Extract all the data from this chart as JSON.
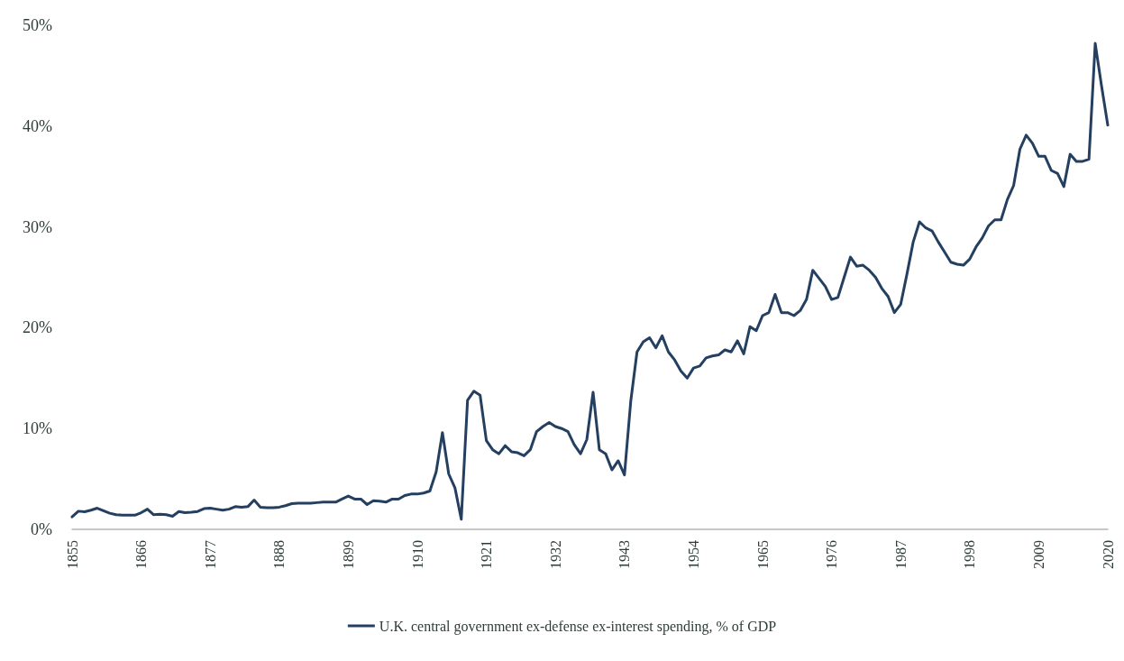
{
  "chart_data": {
    "type": "line",
    "x": [
      1855,
      1856,
      1857,
      1858,
      1859,
      1860,
      1861,
      1862,
      1863,
      1864,
      1865,
      1866,
      1867,
      1868,
      1869,
      1870,
      1871,
      1872,
      1873,
      1874,
      1875,
      1876,
      1877,
      1878,
      1879,
      1880,
      1881,
      1882,
      1883,
      1884,
      1885,
      1886,
      1887,
      1888,
      1889,
      1890,
      1891,
      1892,
      1893,
      1894,
      1895,
      1896,
      1897,
      1898,
      1899,
      1900,
      1901,
      1902,
      1903,
      1904,
      1905,
      1906,
      1907,
      1908,
      1909,
      1910,
      1911,
      1912,
      1913,
      1914,
      1915,
      1916,
      1917,
      1918,
      1919,
      1920,
      1921,
      1922,
      1923,
      1924,
      1925,
      1926,
      1927,
      1928,
      1929,
      1930,
      1931,
      1932,
      1933,
      1934,
      1935,
      1936,
      1937,
      1938,
      1939,
      1940,
      1941,
      1942,
      1943,
      1944,
      1945,
      1946,
      1947,
      1948,
      1949,
      1950,
      1951,
      1952,
      1953,
      1954,
      1955,
      1956,
      1957,
      1958,
      1959,
      1960,
      1961,
      1962,
      1963,
      1964,
      1965,
      1966,
      1967,
      1968,
      1969,
      1970,
      1971,
      1972,
      1973,
      1974,
      1975,
      1976,
      1977,
      1978,
      1979,
      1980,
      1981,
      1982,
      1983,
      1984,
      1985,
      1986,
      1987,
      1988,
      1989,
      1990,
      1991,
      1992,
      1993,
      1994,
      1995,
      1996,
      1997,
      1998,
      1999,
      2000,
      2001,
      2002,
      2003,
      2004,
      2005,
      2006,
      2007,
      2008,
      2009,
      2010,
      2011,
      2012,
      2013,
      2014,
      2015,
      2016,
      2017,
      2018,
      2019,
      2020
    ],
    "series": [
      {
        "name": "U.K. central government ex-defense ex-interest spending, % of GDP",
        "color": "#243f60",
        "values": [
          1.24,
          1.8,
          1.75,
          1.9,
          2.1,
          1.85,
          1.6,
          1.45,
          1.4,
          1.4,
          1.4,
          1.65,
          2.0,
          1.45,
          1.5,
          1.45,
          1.3,
          1.77,
          1.65,
          1.7,
          1.77,
          2.05,
          2.1,
          2.0,
          1.9,
          2.0,
          2.25,
          2.2,
          2.25,
          2.9,
          2.2,
          2.15,
          2.15,
          2.2,
          2.35,
          2.55,
          2.6,
          2.6,
          2.6,
          2.65,
          2.7,
          2.7,
          2.7,
          3.0,
          3.3,
          3.0,
          3.0,
          2.46,
          2.84,
          2.8,
          2.7,
          3.0,
          3.0,
          3.35,
          3.5,
          3.5,
          3.6,
          3.8,
          5.7,
          9.6,
          5.5,
          4.1,
          1.0,
          12.8,
          13.7,
          13.3,
          8.8,
          7.9,
          7.5,
          8.3,
          7.7,
          7.6,
          7.3,
          7.9,
          9.7,
          10.2,
          10.6,
          10.2,
          10.0,
          9.7,
          8.4,
          7.5,
          8.9,
          13.6,
          7.9,
          7.5,
          5.9,
          6.8,
          5.4,
          12.7,
          17.6,
          18.6,
          19.0,
          18.0,
          19.2,
          17.6,
          16.8,
          15.7,
          15.0,
          16.0,
          16.2,
          17.0,
          17.2,
          17.3,
          17.8,
          17.6,
          18.7,
          17.4,
          20.1,
          19.7,
          21.2,
          21.5,
          23.3,
          21.5,
          21.5,
          21.2,
          21.7,
          22.8,
          25.7,
          24.9,
          24.1,
          22.8,
          23.0,
          25.0,
          27.0,
          26.1,
          26.2,
          25.7,
          25.0,
          23.9,
          23.1,
          21.5,
          22.3,
          25.3,
          28.5,
          30.5,
          29.9,
          29.6,
          28.5,
          27.5,
          26.5,
          26.3,
          26.2,
          26.8,
          28.0,
          28.9,
          30.1,
          30.7,
          30.7,
          32.7,
          34.1,
          37.7,
          39.1,
          38.3,
          37.0,
          37.0,
          35.6,
          35.3,
          34.0,
          37.2,
          36.5,
          36.5,
          36.7,
          48.2,
          44.0,
          40.1
        ]
      }
    ],
    "xlim": [
      1855,
      2020
    ],
    "xticks": [
      1855,
      1866,
      1877,
      1888,
      1899,
      1910,
      1921,
      1932,
      1943,
      1954,
      1965,
      1976,
      1987,
      1998,
      2009,
      2020
    ],
    "ylim": [
      0,
      50
    ],
    "yticks": [
      {
        "value": 0,
        "label": "0%"
      },
      {
        "value": 10,
        "label": "10%"
      },
      {
        "value": 20,
        "label": "20%"
      },
      {
        "value": 30,
        "label": "30%"
      },
      {
        "value": 40,
        "label": "40%"
      },
      {
        "value": 50,
        "label": "50%"
      }
    ],
    "grid": false,
    "legend": "bottom",
    "marker": "none",
    "line_style": "solid"
  }
}
